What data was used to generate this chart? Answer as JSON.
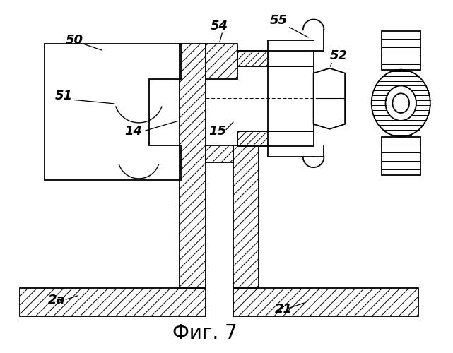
{
  "title": "Фиг. 7",
  "title_fontsize": 20,
  "background_color": "#ffffff",
  "line_color": "#000000",
  "label_fontsize": 13
}
